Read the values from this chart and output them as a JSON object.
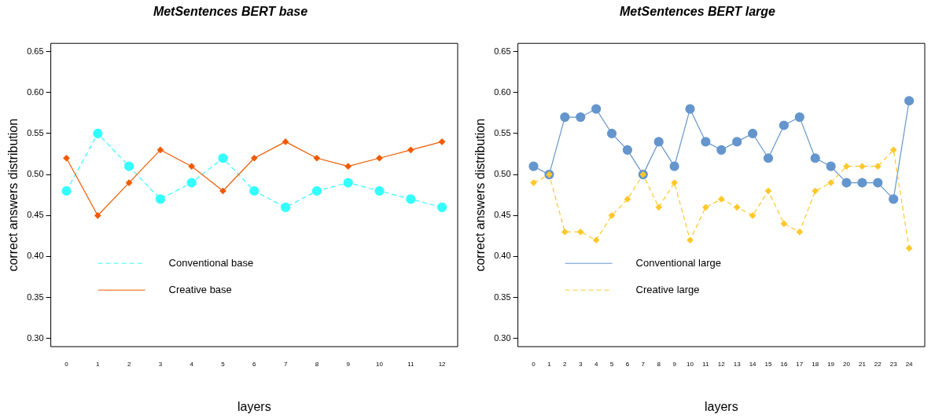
{
  "chart_data": [
    {
      "type": "line",
      "title": "MetSentences BERT base",
      "xlabel": "layers",
      "ylabel": "correct answers distribution",
      "x": [
        0,
        1,
        2,
        3,
        4,
        5,
        6,
        7,
        8,
        9,
        10,
        11,
        12
      ],
      "xlim": [
        -0.5,
        12.5
      ],
      "xticks": [
        0,
        1,
        2,
        3,
        4,
        5,
        6,
        7,
        8,
        9,
        10,
        11,
        12
      ],
      "ylim": [
        0.29,
        0.66
      ],
      "yticks": [
        {
          "value": 0.3,
          "label": "0.30"
        },
        0.35,
        {
          "value": 0.4,
          "label": "0.40"
        },
        0.45,
        {
          "value": 0.5,
          "label": "0.50"
        },
        0.55,
        {
          "value": 0.6,
          "label": "0.60"
        },
        0.65
      ],
      "legend": "bottom left",
      "grid": false,
      "series": [
        {
          "name": "Conventional base",
          "color": "#33ffff",
          "marker": "circle",
          "line_style": "dashed",
          "values": [
            0.48,
            0.55,
            0.51,
            0.47,
            0.49,
            0.52,
            0.48,
            0.46,
            0.48,
            0.49,
            0.48,
            0.47,
            0.46
          ]
        },
        {
          "name": "Creative base",
          "color": "#f05a00",
          "marker": "diamond",
          "line_style": "solid",
          "values": [
            0.52,
            0.45,
            0.49,
            0.53,
            0.51,
            0.48,
            0.52,
            0.54,
            0.52,
            0.51,
            0.52,
            0.53,
            0.54
          ]
        }
      ]
    },
    {
      "type": "line",
      "title": "MetSentences BERT large",
      "xlabel": "layers",
      "ylabel": "correct answers distribution",
      "x": [
        0,
        1,
        2,
        3,
        4,
        5,
        6,
        7,
        8,
        9,
        10,
        11,
        12,
        13,
        14,
        15,
        16,
        17,
        18,
        19,
        20,
        21,
        22,
        23,
        24
      ],
      "xlim": [
        -1,
        25
      ],
      "xticks": [
        0,
        1,
        2,
        3,
        4,
        5,
        6,
        7,
        8,
        9,
        10,
        11,
        12,
        13,
        14,
        15,
        16,
        17,
        18,
        19,
        20,
        21,
        22,
        23,
        24
      ],
      "ylim": [
        0.29,
        0.66
      ],
      "yticks": [
        {
          "value": 0.3,
          "label": "0.30"
        },
        0.35,
        {
          "value": 0.4,
          "label": "0.40"
        },
        0.45,
        {
          "value": 0.5,
          "label": "0.50"
        },
        0.55,
        {
          "value": 0.6,
          "label": "0.60"
        },
        0.65
      ],
      "legend": "bottom left",
      "grid": false,
      "series": [
        {
          "name": "Conventional large",
          "color": "#6495cd",
          "marker": "circle",
          "line_style": "solid",
          "values": [
            0.51,
            0.5,
            0.57,
            0.57,
            0.58,
            0.55,
            0.53,
            0.5,
            0.54,
            0.51,
            0.58,
            0.54,
            0.53,
            0.54,
            0.55,
            0.52,
            0.56,
            0.57,
            0.52,
            0.51,
            0.49,
            0.49,
            0.49,
            0.47,
            0.59
          ]
        },
        {
          "name": "Creative large",
          "color": "#ffc82a",
          "marker": "diamond",
          "line_style": "dashed",
          "values": [
            0.49,
            0.5,
            0.43,
            0.43,
            0.42,
            0.45,
            0.47,
            0.5,
            0.46,
            0.49,
            0.42,
            0.46,
            0.47,
            0.46,
            0.45,
            0.48,
            0.44,
            0.43,
            0.48,
            0.49,
            0.51,
            0.51,
            0.51,
            0.53,
            0.41
          ]
        }
      ]
    }
  ]
}
